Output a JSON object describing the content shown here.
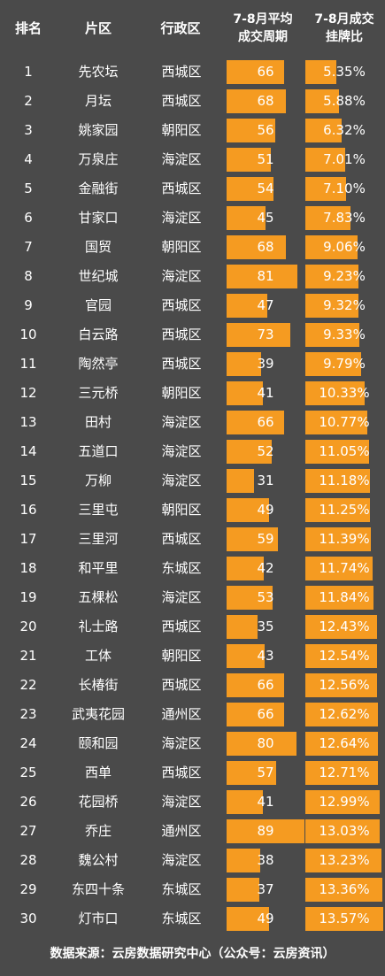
{
  "chart_data": {
    "type": "table",
    "headers": {
      "rank": "排名",
      "area": "片区",
      "district": "行政区",
      "cycle": [
        "7-8月平均",
        "成交周期"
      ],
      "ratio": [
        "7-8月成交",
        "挂牌比"
      ]
    },
    "cycle_max": 89,
    "ratio_max": 13.57,
    "colors": {
      "background": "#4a4a4a",
      "bar": "#f59b21",
      "text": "#ffffff"
    },
    "rows": [
      {
        "rank": "1",
        "area": "先农坛",
        "district": "西城区",
        "cycle": 66,
        "ratio": 5.35,
        "ratio_label": "5.35%"
      },
      {
        "rank": "2",
        "area": "月坛",
        "district": "西城区",
        "cycle": 68,
        "ratio": 5.88,
        "ratio_label": "5.88%"
      },
      {
        "rank": "3",
        "area": "姚家园",
        "district": "朝阳区",
        "cycle": 56,
        "ratio": 6.32,
        "ratio_label": "6.32%"
      },
      {
        "rank": "4",
        "area": "万泉庄",
        "district": "海淀区",
        "cycle": 51,
        "ratio": 7.01,
        "ratio_label": "7.01%"
      },
      {
        "rank": "5",
        "area": "金融街",
        "district": "西城区",
        "cycle": 54,
        "ratio": 7.1,
        "ratio_label": "7.10%"
      },
      {
        "rank": "6",
        "area": "甘家口",
        "district": "海淀区",
        "cycle": 45,
        "ratio": 7.83,
        "ratio_label": "7.83%"
      },
      {
        "rank": "7",
        "area": "国贸",
        "district": "朝阳区",
        "cycle": 68,
        "ratio": 9.06,
        "ratio_label": "9.06%"
      },
      {
        "rank": "8",
        "area": "世纪城",
        "district": "海淀区",
        "cycle": 81,
        "ratio": 9.23,
        "ratio_label": "9.23%"
      },
      {
        "rank": "9",
        "area": "官园",
        "district": "西城区",
        "cycle": 47,
        "ratio": 9.32,
        "ratio_label": "9.32%"
      },
      {
        "rank": "10",
        "area": "白云路",
        "district": "西城区",
        "cycle": 73,
        "ratio": 9.33,
        "ratio_label": "9.33%"
      },
      {
        "rank": "11",
        "area": "陶然亭",
        "district": "西城区",
        "cycle": 39,
        "ratio": 9.79,
        "ratio_label": "9.79%"
      },
      {
        "rank": "12",
        "area": "三元桥",
        "district": "朝阳区",
        "cycle": 41,
        "ratio": 10.33,
        "ratio_label": "10.33%"
      },
      {
        "rank": "13",
        "area": "田村",
        "district": "海淀区",
        "cycle": 66,
        "ratio": 10.77,
        "ratio_label": "10.77%"
      },
      {
        "rank": "14",
        "area": "五道口",
        "district": "海淀区",
        "cycle": 52,
        "ratio": 11.05,
        "ratio_label": "11.05%"
      },
      {
        "rank": "15",
        "area": "万柳",
        "district": "海淀区",
        "cycle": 31,
        "ratio": 11.18,
        "ratio_label": "11.18%"
      },
      {
        "rank": "16",
        "area": "三里屯",
        "district": "朝阳区",
        "cycle": 49,
        "ratio": 11.25,
        "ratio_label": "11.25%"
      },
      {
        "rank": "17",
        "area": "三里河",
        "district": "西城区",
        "cycle": 59,
        "ratio": 11.39,
        "ratio_label": "11.39%"
      },
      {
        "rank": "18",
        "area": "和平里",
        "district": "东城区",
        "cycle": 42,
        "ratio": 11.74,
        "ratio_label": "11.74%"
      },
      {
        "rank": "19",
        "area": "五棵松",
        "district": "海淀区",
        "cycle": 53,
        "ratio": 11.84,
        "ratio_label": "11.84%"
      },
      {
        "rank": "20",
        "area": "礼士路",
        "district": "西城区",
        "cycle": 35,
        "ratio": 12.43,
        "ratio_label": "12.43%"
      },
      {
        "rank": "21",
        "area": "工体",
        "district": "朝阳区",
        "cycle": 43,
        "ratio": 12.54,
        "ratio_label": "12.54%"
      },
      {
        "rank": "22",
        "area": "长椿街",
        "district": "西城区",
        "cycle": 66,
        "ratio": 12.56,
        "ratio_label": "12.56%"
      },
      {
        "rank": "23",
        "area": "武夷花园",
        "district": "通州区",
        "cycle": 66,
        "ratio": 12.62,
        "ratio_label": "12.62%"
      },
      {
        "rank": "24",
        "area": "颐和园",
        "district": "海淀区",
        "cycle": 80,
        "ratio": 12.64,
        "ratio_label": "12.64%"
      },
      {
        "rank": "25",
        "area": "西单",
        "district": "西城区",
        "cycle": 57,
        "ratio": 12.71,
        "ratio_label": "12.71%"
      },
      {
        "rank": "26",
        "area": "花园桥",
        "district": "海淀区",
        "cycle": 41,
        "ratio": 12.99,
        "ratio_label": "12.99%"
      },
      {
        "rank": "27",
        "area": "乔庄",
        "district": "通州区",
        "cycle": 89,
        "ratio": 13.03,
        "ratio_label": "13.03%"
      },
      {
        "rank": "28",
        "area": "魏公村",
        "district": "海淀区",
        "cycle": 38,
        "ratio": 13.23,
        "ratio_label": "13.23%"
      },
      {
        "rank": "29",
        "area": "东四十条",
        "district": "东城区",
        "cycle": 37,
        "ratio": 13.36,
        "ratio_label": "13.36%"
      },
      {
        "rank": "30",
        "area": "灯市口",
        "district": "东城区",
        "cycle": 49,
        "ratio": 13.57,
        "ratio_label": "13.57%"
      }
    ],
    "source": "数据来源：云房数据研究中心（公众号：云房资讯）"
  }
}
